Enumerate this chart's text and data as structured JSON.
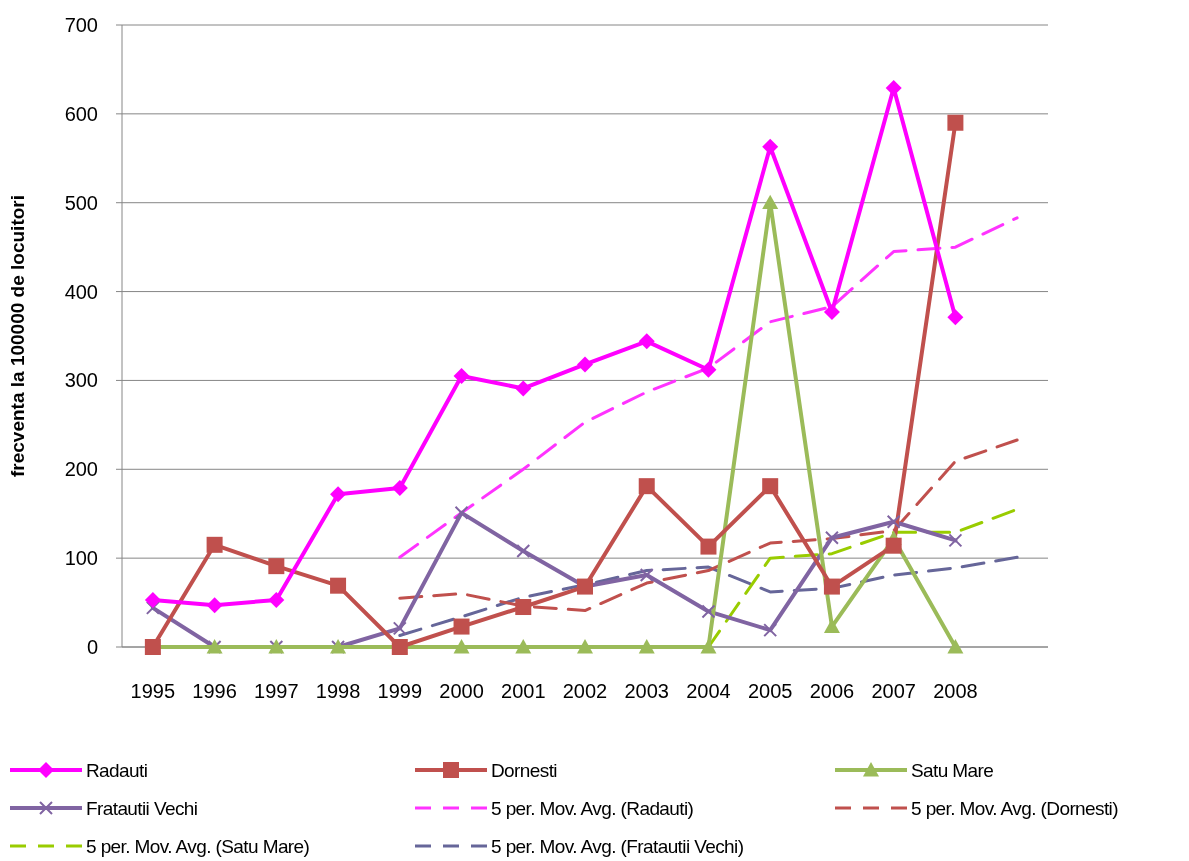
{
  "chart_data": {
    "type": "line",
    "ylabel": "frecventa la 100000 de locuitori",
    "categories": [
      "1995",
      "1996",
      "1997",
      "1998",
      "1999",
      "2000",
      "2001",
      "2002",
      "2003",
      "2004",
      "2005",
      "2006",
      "2007",
      "2008",
      null
    ],
    "ylim": [
      0,
      700
    ],
    "yticks": [
      0,
      100,
      200,
      300,
      400,
      500,
      600,
      700
    ],
    "grid": "y",
    "legend": "bottom",
    "series": [
      {
        "name": "Radauti",
        "color": "#ff00ff",
        "marker": "diamond",
        "values": [
          53,
          47,
          53,
          172,
          179,
          305,
          291,
          318,
          344,
          312,
          563,
          377,
          629,
          371,
          null
        ]
      },
      {
        "name": "Dornesti",
        "color": "#c0504d",
        "marker": "square",
        "values": [
          0,
          115,
          91,
          69,
          0,
          23,
          45,
          68,
          181,
          113,
          181,
          68,
          114,
          590,
          null
        ]
      },
      {
        "name": "Satu Mare",
        "color": "#9bbb59",
        "marker": "triangle",
        "values": [
          0,
          0,
          0,
          0,
          0,
          0,
          0,
          0,
          0,
          0,
          500,
          23,
          122,
          0,
          null
        ]
      },
      {
        "name": "Fratautii Vechi",
        "color": "#8064a2",
        "marker": "cross",
        "values": [
          44,
          0,
          0,
          0,
          21,
          151,
          108,
          68,
          81,
          40,
          19,
          123,
          141,
          120,
          null
        ]
      },
      {
        "name": "5 per. Mov. Avg. (Radauti)",
        "color": "#ff33ff",
        "marker": "none",
        "line_style": "dashed",
        "values": [
          null,
          null,
          null,
          null,
          101,
          151,
          200,
          253,
          287,
          314,
          366,
          383,
          445,
          450,
          483
        ]
      },
      {
        "name": "5 per. Mov. Avg. (Dornesti)",
        "color": "#c0504d",
        "marker": "none",
        "line_style": "dashed",
        "values": [
          null,
          null,
          null,
          null,
          55,
          60,
          46,
          41,
          72,
          86,
          117,
          122,
          131,
          209,
          233
        ]
      },
      {
        "name": "5 per. Mov. Avg. (Satu Mare)",
        "color": "#99cc00",
        "marker": "none",
        "line_style": "dashed",
        "values": [
          null,
          null,
          null,
          null,
          0,
          0,
          0,
          0,
          0,
          0,
          100,
          105,
          129,
          129,
          155
        ]
      },
      {
        "name": "5 per. Mov. Avg. (Fratautii Vechi)",
        "color": "#666699",
        "marker": "none",
        "line_style": "dashed",
        "values": [
          null,
          null,
          null,
          null,
          13,
          34,
          56,
          70,
          86,
          90,
          62,
          66,
          81,
          89,
          101
        ]
      }
    ]
  }
}
